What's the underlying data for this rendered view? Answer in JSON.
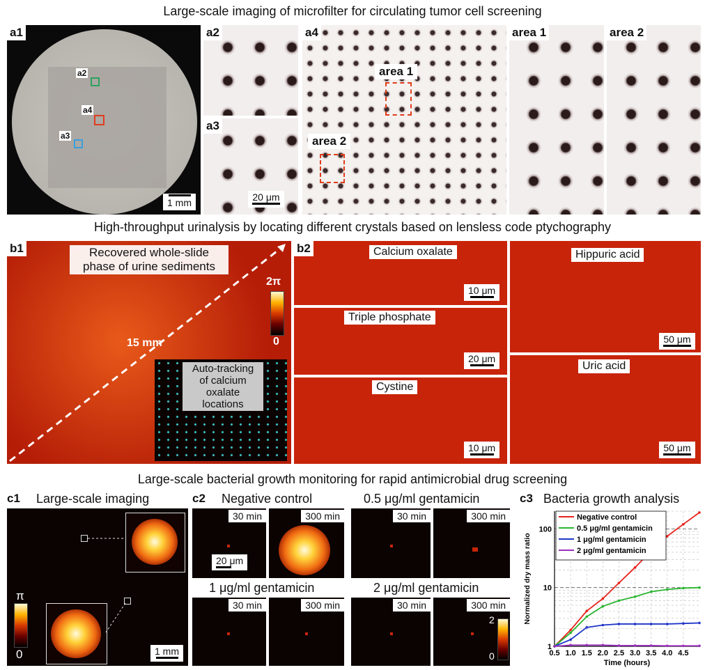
{
  "titles": {
    "a": "Large-scale imaging of microfilter for circulating tumor cell screening",
    "b": "High-throughput urinalysis by locating different crystals based on lensless code ptychography",
    "c": "Large-scale bacterial growth monitoring for rapid antimicrobial drug screening"
  },
  "panel_a": {
    "a1": "a1",
    "a2": "a2",
    "a3": "a3",
    "a4": "a4",
    "marker_a2": "a2",
    "marker_a4": "a4",
    "marker_a3": "a3",
    "area1": "area 1",
    "area2": "area 2",
    "area1_label": "area 1",
    "area2_label": "area 2",
    "scale_a1": "1 mm",
    "scale_a3": "20 μm",
    "colors": {
      "a2": "#2ca25f",
      "a4": "#e03c1c",
      "a3": "#3aa0dc"
    }
  },
  "panel_b": {
    "b1": "b1",
    "b2": "b2",
    "recovered": "Recovered whole-slide phase of urine sediments",
    "dist": "15 mm",
    "cb_top": "2π",
    "cb_bottom": "0",
    "tracking": "Auto-tracking of calcium oxalate locations",
    "calcium": "Calcium oxalate",
    "triple": "Triple phosphate",
    "cystine": "Cystine",
    "hippuric": "Hippuric acid",
    "uric": "Uric acid",
    "sb_10a": "10 μm",
    "sb_20": "20 μm",
    "sb_10b": "10 μm",
    "sb_50a": "50 μm",
    "sb_50b": "50 μm"
  },
  "panel_c": {
    "c1": "c1",
    "c1_title": "Large-scale imaging",
    "c1_cb_top": "π",
    "c1_cb_bottom": "0",
    "c1_scale": "1 mm",
    "c2": "c2",
    "neg": "Negative control",
    "g05": "0.5 μg/ml gentamicin",
    "g1": "1 μg/ml gentamicin",
    "g2": "2 μg/ml gentamicin",
    "t30": "30 min",
    "t300": "300 min",
    "c2_scale": "20 μm",
    "c2_cb_top": "2",
    "c2_cb_bottom": "0",
    "c3": "c3",
    "c3_title": "Bacteria growth analysis"
  },
  "chart_data": {
    "type": "line",
    "title": "Bacteria growth analysis",
    "xlabel": "Time (hours)",
    "ylabel": "Normalized dry mass ratio",
    "yscale": "log",
    "xlim": [
      0.5,
      5.0
    ],
    "ylim": [
      1,
      200
    ],
    "x_ticks": [
      "0.5",
      "1.0",
      "1.5",
      "2.0",
      "2.5",
      "3.0",
      "3.5",
      "4.0",
      "4.5"
    ],
    "y_ticks": [
      "1",
      "10",
      "100"
    ],
    "legend_position": "top-left",
    "x": [
      0.5,
      1.0,
      1.5,
      2.0,
      2.5,
      3.0,
      3.5,
      4.0,
      4.5,
      5.0
    ],
    "series": [
      {
        "name": "Negative control",
        "color": "#e8231c",
        "values": [
          1,
          1.9,
          4,
          6.5,
          12,
          22,
          42,
          75,
          120,
          190
        ]
      },
      {
        "name": "0.5 μg/ml gentamicin",
        "color": "#29b52f",
        "values": [
          1,
          1.7,
          3.2,
          4.8,
          6,
          7,
          8.5,
          9.3,
          9.8,
          10
        ]
      },
      {
        "name": "1 μg/ml gentamicin",
        "color": "#1f37c8",
        "values": [
          1,
          1.3,
          2.1,
          2.3,
          2.4,
          2.4,
          2.4,
          2.4,
          2.45,
          2.5
        ]
      },
      {
        "name": "2 μg/ml gentamicin",
        "color": "#9b2fbe",
        "values": [
          1,
          1.05,
          1.05,
          1.05,
          1.03,
          1.03,
          1.03,
          1.02,
          1.02,
          1.02
        ]
      }
    ]
  }
}
